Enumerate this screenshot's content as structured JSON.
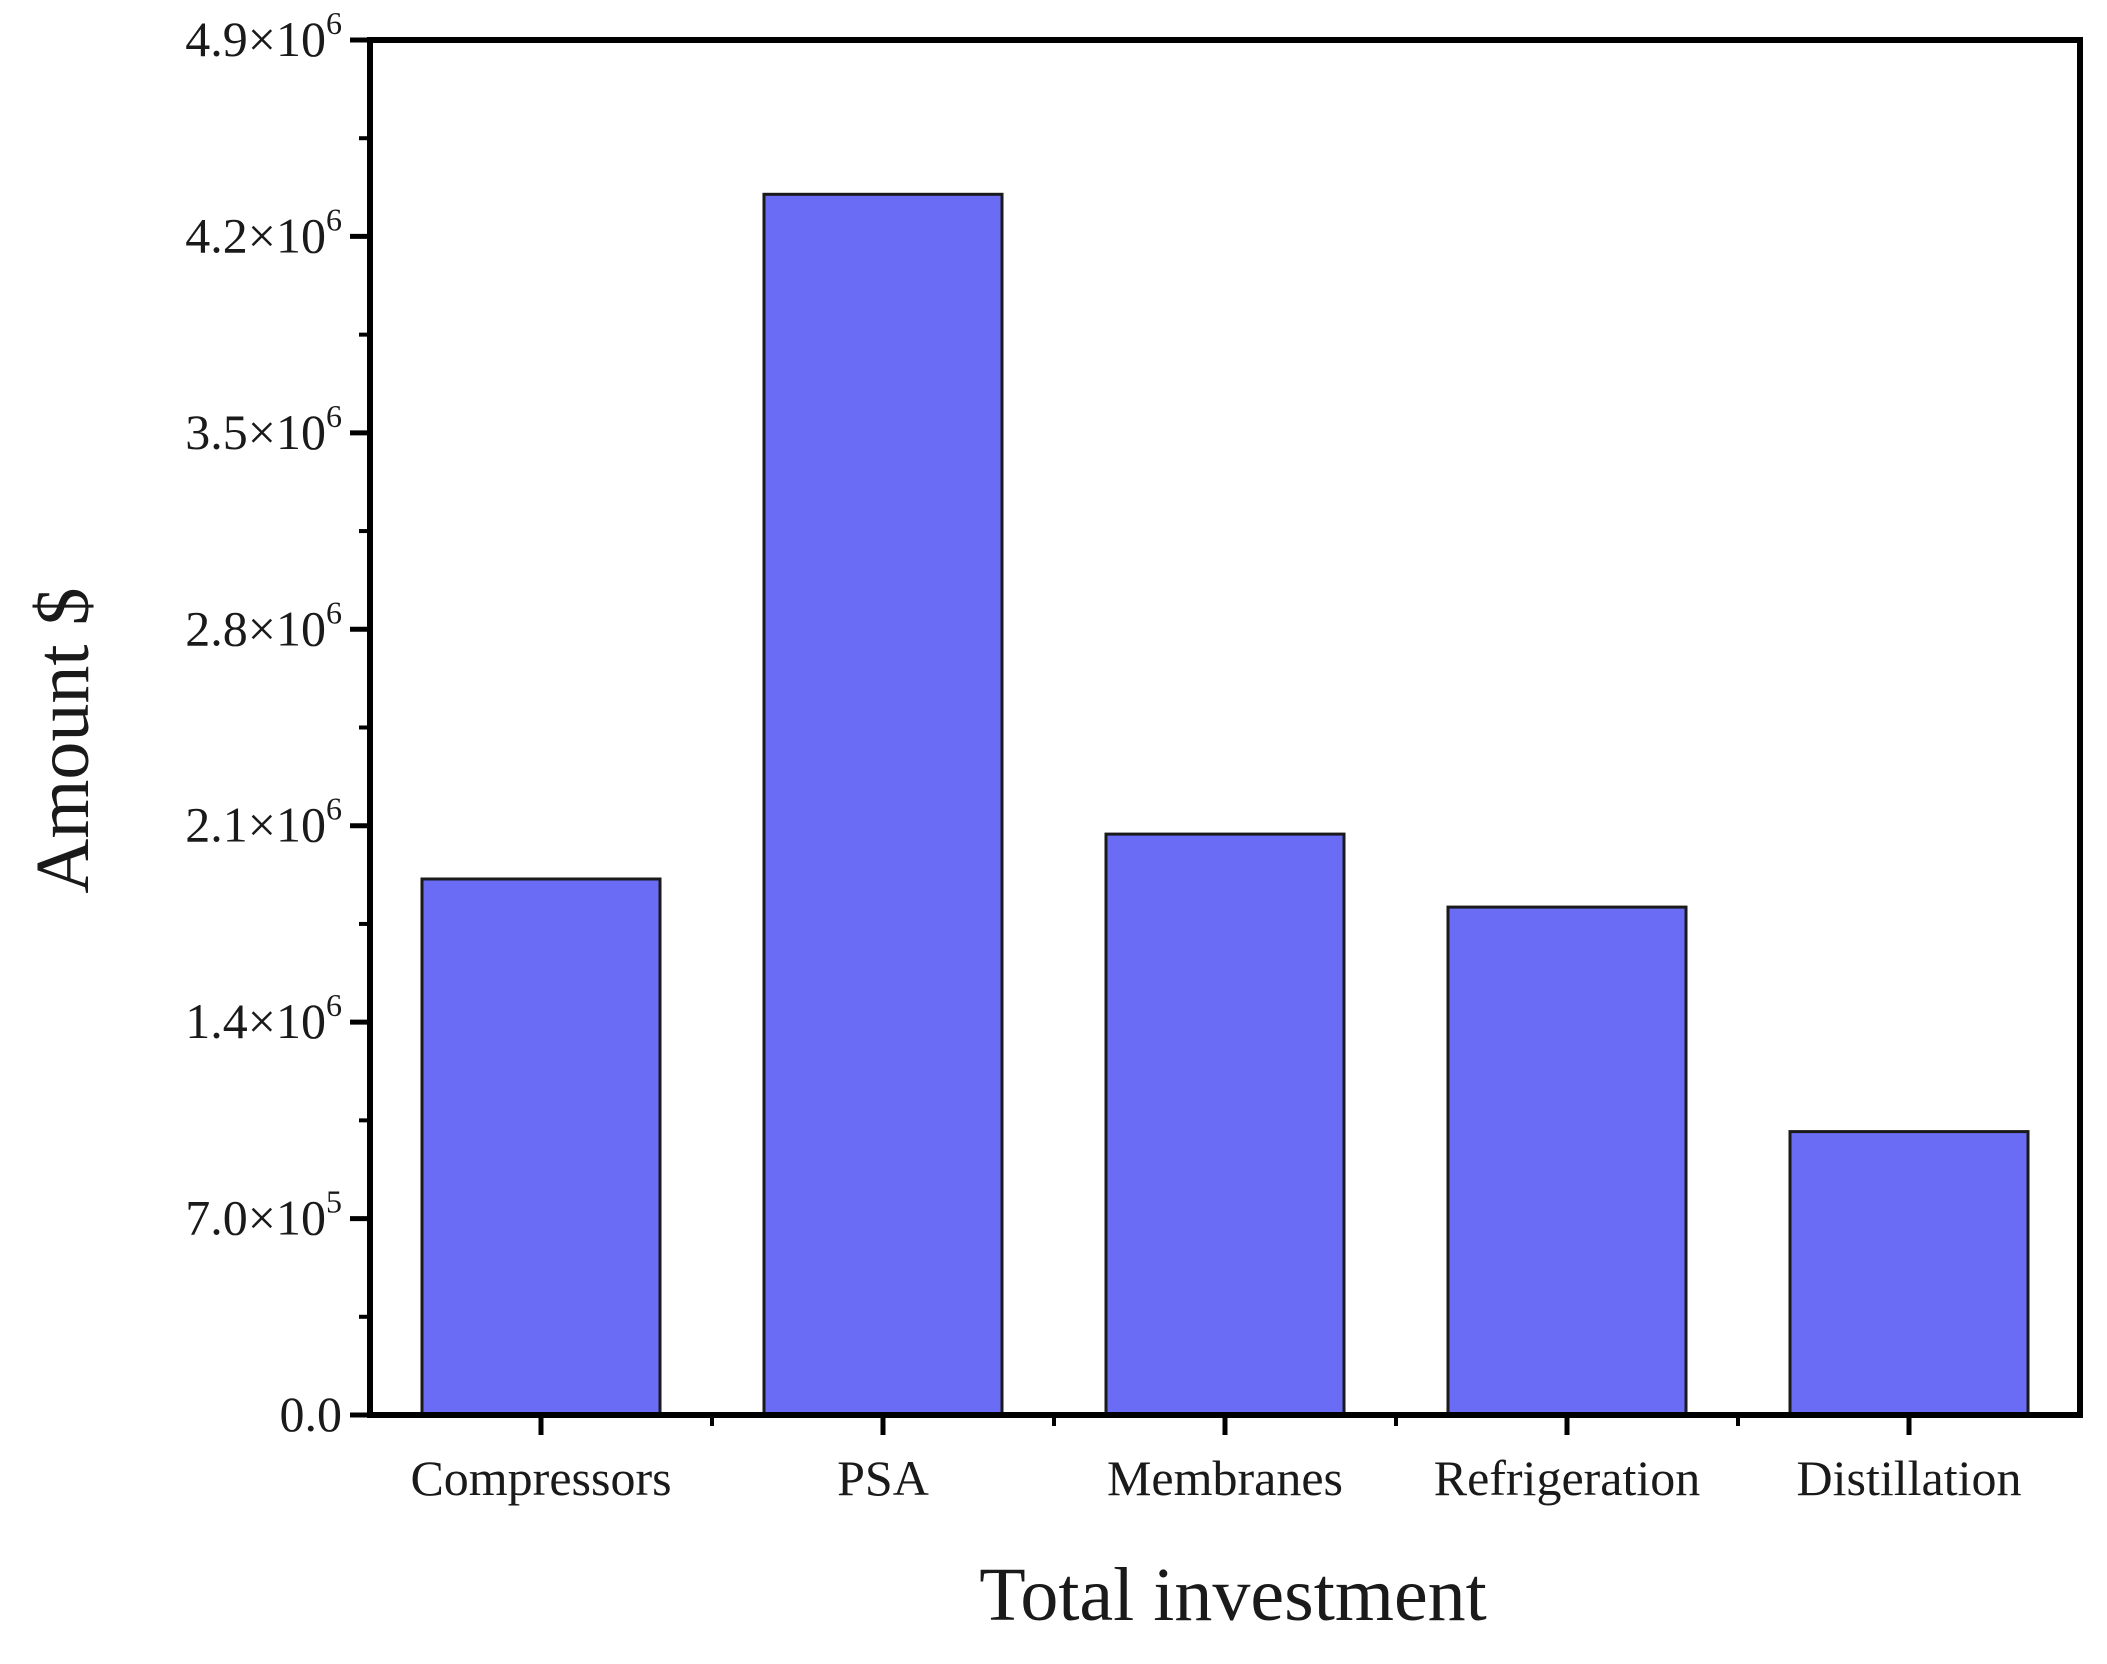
{
  "chart_data": {
    "type": "bar",
    "title": "",
    "xlabel": "Total investment",
    "ylabel": "Amount $",
    "categories": [
      "Compressors",
      "PSA",
      "Membranes",
      "Refrigeration",
      "Distillation"
    ],
    "values": [
      1910000,
      4350000,
      2070000,
      1810000,
      1010000
    ],
    "ylim": [
      0,
      4900000
    ],
    "y_ticks": [
      {
        "value": 0,
        "mantissa": "0.0",
        "exponent": ""
      },
      {
        "value": 700000,
        "mantissa": "7.0×10",
        "exponent": "5"
      },
      {
        "value": 1400000,
        "mantissa": "1.4×10",
        "exponent": "6"
      },
      {
        "value": 2100000,
        "mantissa": "2.1×10",
        "exponent": "6"
      },
      {
        "value": 2800000,
        "mantissa": "2.8×10",
        "exponent": "6"
      },
      {
        "value": 3500000,
        "mantissa": "3.5×10",
        "exponent": "6"
      },
      {
        "value": 4200000,
        "mantissa": "4.2×10",
        "exponent": "6"
      },
      {
        "value": 4900000,
        "mantissa": "4.9×10",
        "exponent": "6"
      }
    ],
    "bar_color": "#6b6cf5",
    "bar_edge_color": "#1a1a1a",
    "grid": false,
    "legend": "none"
  }
}
